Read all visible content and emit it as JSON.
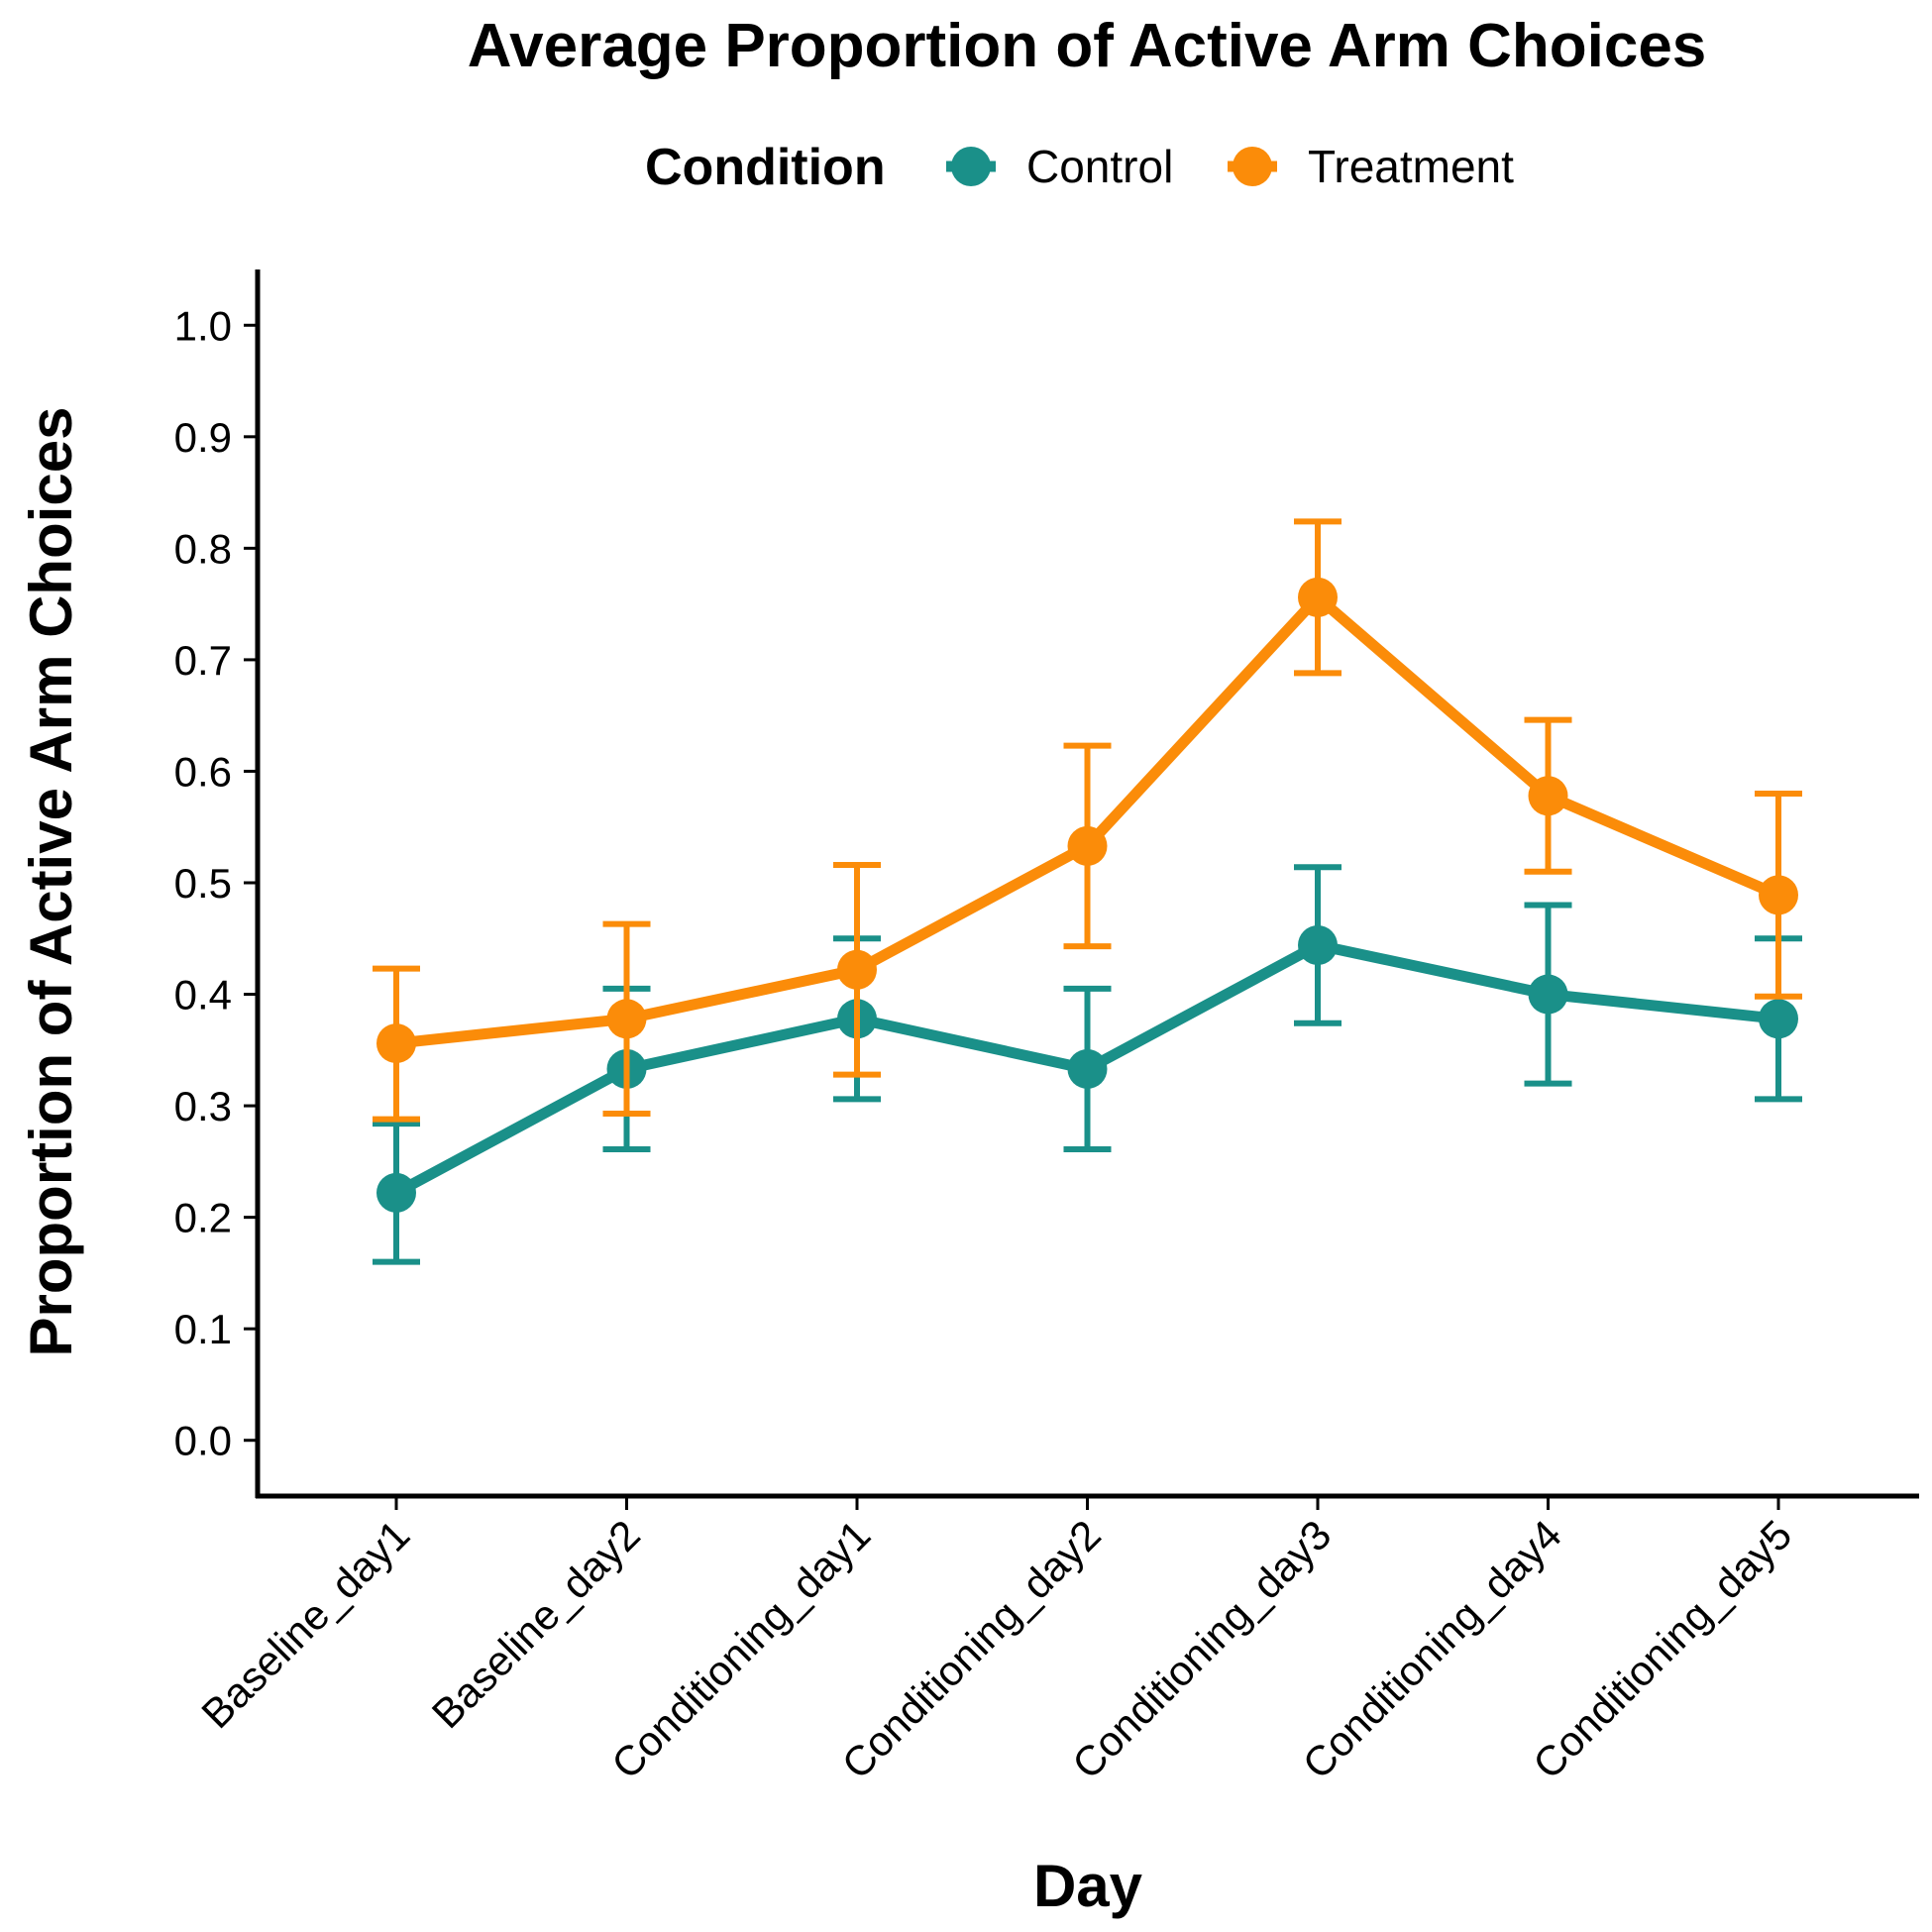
{
  "chart_data": {
    "type": "line",
    "title": "Average Proportion of Active Arm Choices",
    "xlabel": "Day",
    "ylabel": "Proportion of Active Arm Choices",
    "legend_title": "Condition",
    "legend_position": "top",
    "grid": false,
    "ylim": [
      -0.05,
      1.05
    ],
    "yticks": [
      0.0,
      0.1,
      0.2,
      0.3,
      0.4,
      0.5,
      0.6,
      0.7,
      0.8,
      0.9,
      1.0
    ],
    "ytick_labels": [
      "0.0",
      "0.1",
      "0.2",
      "0.3",
      "0.4",
      "0.5",
      "0.6",
      "0.7",
      "0.8",
      "0.9",
      "1.0"
    ],
    "categories": [
      "Baseline_day1",
      "Baseline_day2",
      "Conditioning_day1",
      "Conditioning_day2",
      "Conditioning_day3",
      "Conditioning_day4",
      "Conditioning_day5"
    ],
    "series": [
      {
        "name": "Control",
        "color": "#1a9089",
        "values": [
          0.222,
          0.333,
          0.378,
          0.333,
          0.444,
          0.4,
          0.378
        ],
        "error_low": [
          0.16,
          0.261,
          0.306,
          0.261,
          0.374,
          0.32,
          0.306
        ],
        "error_high": [
          0.284,
          0.405,
          0.45,
          0.405,
          0.514,
          0.48,
          0.45
        ]
      },
      {
        "name": "Treatment",
        "color": "#fb8c09",
        "values": [
          0.356,
          0.378,
          0.422,
          0.533,
          0.756,
          0.578,
          0.489
        ],
        "error_low": [
          0.288,
          0.293,
          0.328,
          0.443,
          0.688,
          0.51,
          0.398
        ],
        "error_high": [
          0.423,
          0.463,
          0.516,
          0.623,
          0.824,
          0.646,
          0.58
        ]
      }
    ]
  }
}
